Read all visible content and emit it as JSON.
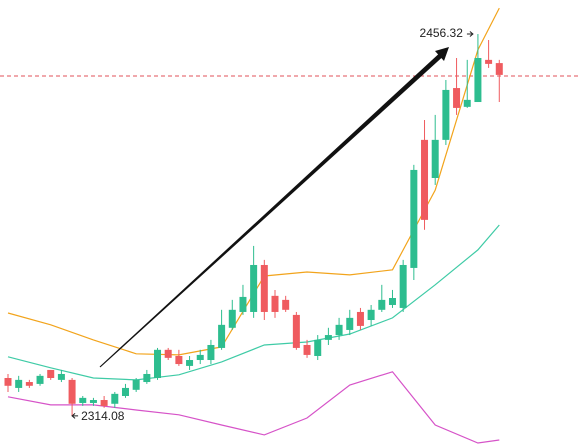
{
  "chart_data": {
    "type": "candlestick",
    "ylim": [
      2302.5,
      2469.0
    ],
    "up_color": "#2dbd8f",
    "down_color": "#ef5b5f",
    "ohlc": [
      [
        2328.2,
        2329.7,
        2323.0,
        2325.3
      ],
      [
        2324.5,
        2329.0,
        2323.0,
        2327.5
      ],
      [
        2326.7,
        2327.5,
        2324.5,
        2325.3
      ],
      [
        2326.0,
        2329.7,
        2325.3,
        2329.0
      ],
      [
        2331.2,
        2331.2,
        2327.5,
        2328.2
      ],
      [
        2327.5,
        2331.2,
        2326.7,
        2329.7
      ],
      [
        2327.5,
        2328.2,
        2314.08,
        2318.6
      ],
      [
        2318.9,
        2321.5,
        2317.8,
        2320.8
      ],
      [
        2318.9,
        2320.8,
        2317.8,
        2320.0
      ],
      [
        2320.0,
        2321.5,
        2317.1,
        2317.8
      ],
      [
        2318.6,
        2323.0,
        2317.1,
        2322.3
      ],
      [
        2321.5,
        2326.0,
        2320.8,
        2324.5
      ],
      [
        2323.8,
        2328.2,
        2323.0,
        2327.5
      ],
      [
        2326.7,
        2331.2,
        2326.0,
        2329.7
      ],
      [
        2328.2,
        2339.4,
        2327.5,
        2338.7
      ],
      [
        2338.7,
        2339.4,
        2334.9,
        2335.7
      ],
      [
        2336.4,
        2338.7,
        2332.7,
        2333.4
      ],
      [
        2332.7,
        2336.4,
        2331.2,
        2334.9
      ],
      [
        2334.9,
        2338.7,
        2333.4,
        2336.8
      ],
      [
        2334.9,
        2342.4,
        2333.4,
        2340.5
      ],
      [
        2339.4,
        2353.6,
        2338.7,
        2348.0
      ],
      [
        2346.9,
        2357.3,
        2346.1,
        2353.6
      ],
      [
        2352.8,
        2362.9,
        2351.7,
        2358.4
      ],
      [
        2352.8,
        2377.4,
        2350.6,
        2370.3
      ],
      [
        2370.3,
        2372.2,
        2349.8,
        2352.8
      ],
      [
        2358.8,
        2361.0,
        2350.6,
        2352.8
      ],
      [
        2357.3,
        2358.8,
        2352.8,
        2353.6
      ],
      [
        2351.7,
        2352.8,
        2338.7,
        2339.4
      ],
      [
        2340.5,
        2342.4,
        2335.7,
        2336.8
      ],
      [
        2336.4,
        2344.2,
        2334.9,
        2342.4
      ],
      [
        2342.4,
        2346.9,
        2340.5,
        2344.2
      ],
      [
        2344.2,
        2350.6,
        2342.4,
        2348.0
      ],
      [
        2346.1,
        2353.6,
        2344.2,
        2350.6
      ],
      [
        2352.8,
        2354.3,
        2346.1,
        2347.6
      ],
      [
        2349.8,
        2355.4,
        2347.6,
        2353.6
      ],
      [
        2353.6,
        2362.9,
        2352.8,
        2357.3
      ],
      [
        2355.4,
        2361.0,
        2354.3,
        2358.0
      ],
      [
        2354.3,
        2372.2,
        2352.8,
        2370.3
      ],
      [
        2369.2,
        2407.6,
        2364.7,
        2405.7
      ],
      [
        2416.9,
        2424.3,
        2383.4,
        2387.1
      ],
      [
        2402.7,
        2426.2,
        2400.1,
        2416.9
      ],
      [
        2416.9,
        2439.2,
        2415.0,
        2435.5
      ],
      [
        2436.2,
        2447.4,
        2426.2,
        2428.8
      ],
      [
        2429.2,
        2446.7,
        2428.8,
        2431.8
      ],
      [
        2431.0,
        2456.32,
        2431.0,
        2447.4
      ],
      [
        2446.7,
        2454.1,
        2443.7,
        2445.2
      ],
      [
        2445.5,
        2446.7,
        2431.0,
        2441.1
      ]
    ],
    "lines": [
      {
        "color": "#f2a41c",
        "x": [
          0,
          4,
          8,
          12,
          16,
          20,
          24,
          28,
          32,
          36,
          40,
          44,
          46
        ],
        "values": [
          2352.4,
          2348.0,
          2342.4,
          2337.2,
          2336.8,
          2339.8,
          2366.2,
          2367.7,
          2366.6,
          2368.5,
          2398.2,
          2450.4,
          2466.0
        ]
      },
      {
        "color": "#3fcba6",
        "x": [
          0,
          4,
          8,
          12,
          16,
          20,
          24,
          28,
          32,
          36,
          40,
          44,
          46
        ],
        "values": [
          2336.1,
          2332.0,
          2328.2,
          2327.5,
          2329.4,
          2334.2,
          2340.5,
          2341.6,
          2344.6,
          2350.6,
          2362.9,
          2375.9,
          2385.2
        ]
      },
      {
        "color": "#d653c8",
        "x": [
          0,
          4,
          8,
          12,
          16,
          20,
          24,
          28,
          32,
          36,
          40,
          44,
          46
        ],
        "values": [
          2321.2,
          2318.2,
          2318.2,
          2316.3,
          2314.5,
          2310.7,
          2307.0,
          2313.3,
          2325.6,
          2330.5,
          2310.7,
          2304.0,
          2305.1
        ]
      }
    ],
    "price_line": 2440.7,
    "price_line_color": "#e0505a",
    "low_label": 2314.08,
    "high_label": 2456.32
  }
}
